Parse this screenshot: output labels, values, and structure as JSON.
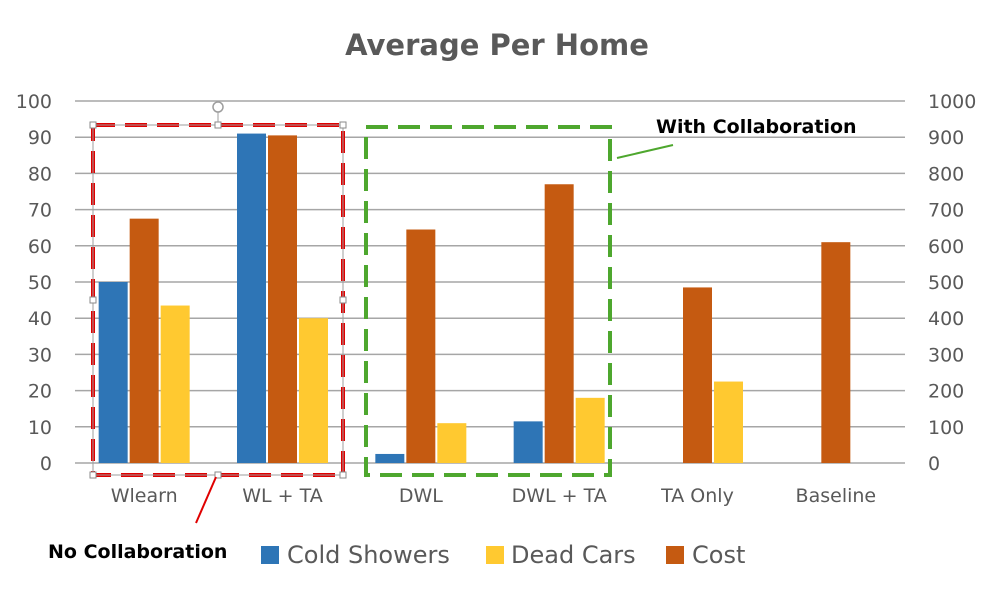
{
  "chart_data": {
    "type": "bar",
    "title": "Average Per Home",
    "categories": [
      "Wlearn",
      "WL + TA",
      "DWL",
      "DWL + TA",
      "TA Only",
      "Baseline"
    ],
    "y_left": {
      "min": 0,
      "max": 100,
      "ticks": [
        0,
        10,
        20,
        30,
        40,
        50,
        60,
        70,
        80,
        90,
        100
      ]
    },
    "y_right": {
      "min": 0,
      "max": 1000,
      "ticks": [
        0,
        100,
        200,
        300,
        400,
        500,
        600,
        700,
        800,
        900,
        1000
      ]
    },
    "series": [
      {
        "name": "Cold Showers",
        "color": "#2E75B6",
        "axis": "left",
        "values": [
          50,
          91,
          2.5,
          11.5,
          null,
          null
        ]
      },
      {
        "name": "Cost",
        "color": "#C55A11",
        "axis": "right",
        "values": [
          675,
          905,
          645,
          770,
          485,
          610
        ]
      },
      {
        "name": "Dead Cars",
        "color": "#FFC930",
        "axis": "left",
        "values": [
          43.5,
          40,
          11,
          18,
          22.5,
          null
        ]
      }
    ],
    "legend": {
      "placement": "bottom",
      "items": [
        {
          "label": "Cold Showers",
          "color": "#2E75B6"
        },
        {
          "label": "Dead Cars",
          "color": "#FFC930"
        },
        {
          "label": "Cost",
          "color": "#C55A11"
        }
      ]
    },
    "grid": true,
    "annotations": [
      {
        "text": "No Collaboration",
        "color": "#E00000",
        "groups": [
          "Wlearn",
          "WL + TA"
        ]
      },
      {
        "text": "With Collaboration",
        "color": "#4EA72E",
        "groups": [
          "DWL",
          "DWL + TA"
        ]
      }
    ]
  }
}
